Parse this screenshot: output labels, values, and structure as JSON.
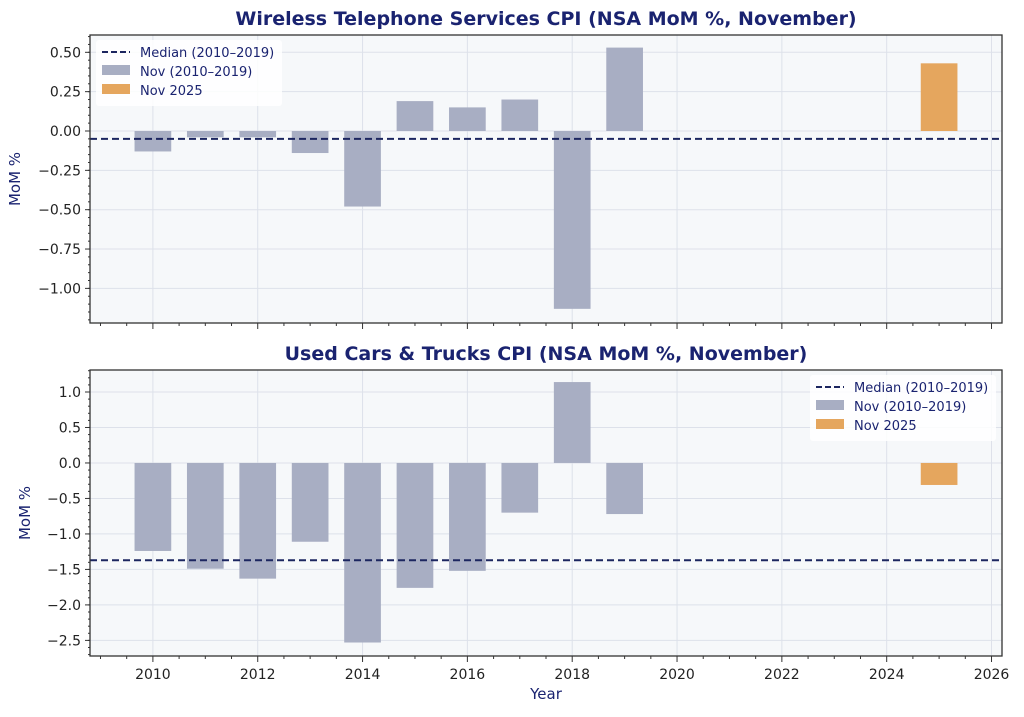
{
  "chart_data": [
    {
      "type": "bar",
      "title": "Wireless Telephone Services CPI (NSA MoM %, November)",
      "xlabel": "",
      "ylabel": "MoM %",
      "xlim": [
        2008.8,
        2026.2
      ],
      "ylim": [
        -1.22,
        0.61
      ],
      "yticks": [
        -1.0,
        -0.75,
        -0.5,
        -0.25,
        0.0,
        0.25,
        0.5
      ],
      "ytick_labels": [
        "−1.00",
        "−0.75",
        "−0.50",
        "−0.25",
        "0.00",
        "0.25",
        "0.50"
      ],
      "xticks": [
        2010,
        2012,
        2014,
        2016,
        2018,
        2020,
        2022,
        2024,
        2026
      ],
      "grid": true,
      "legend_position": "top-left",
      "legend": [
        "Median (2010–2019)",
        "Nov (2010–2019)",
        "Nov 2025"
      ],
      "history": {
        "x": [
          2010,
          2011,
          2012,
          2013,
          2014,
          2015,
          2016,
          2017,
          2018,
          2019
        ],
        "values": [
          -0.13,
          -0.04,
          -0.04,
          -0.14,
          -0.48,
          0.19,
          0.15,
          0.2,
          -1.13,
          0.53
        ]
      },
      "current": {
        "x": 2025,
        "value": 0.43
      },
      "median": -0.05
    },
    {
      "type": "bar",
      "title": "Used Cars & Trucks CPI (NSA MoM %, November)",
      "xlabel": "Year",
      "ylabel": "MoM %",
      "xlim": [
        2008.8,
        2026.2
      ],
      "ylim": [
        -2.72,
        1.31
      ],
      "yticks": [
        -2.5,
        -2.0,
        -1.5,
        -1.0,
        -0.5,
        0.0,
        0.5,
        1.0
      ],
      "ytick_labels": [
        "−2.5",
        "−2.0",
        "−1.5",
        "−1.0",
        "−0.5",
        "0.0",
        "0.5",
        "1.0"
      ],
      "xticks": [
        2010,
        2012,
        2014,
        2016,
        2018,
        2020,
        2022,
        2024,
        2026
      ],
      "xtick_labels": [
        "2010",
        "2012",
        "2014",
        "2016",
        "2018",
        "2020",
        "2022",
        "2024",
        "2026"
      ],
      "grid": true,
      "legend_position": "top-right",
      "legend": [
        "Median (2010–2019)",
        "Nov (2010–2019)",
        "Nov 2025"
      ],
      "history": {
        "x": [
          2010,
          2011,
          2012,
          2013,
          2014,
          2015,
          2016,
          2017,
          2018,
          2019
        ],
        "values": [
          -1.24,
          -1.49,
          -1.63,
          -1.11,
          -2.53,
          -1.76,
          -1.52,
          -0.7,
          1.14,
          -0.72
        ]
      },
      "current": {
        "x": 2025,
        "value": -0.31
      },
      "median": -1.37
    }
  ],
  "colors": {
    "history": "#a8aec3",
    "current": "#e5a65e",
    "median": "#1c2660",
    "plot_bg": "#f6f8fa",
    "grid": "#dde1ea",
    "text": "#1a2370"
  }
}
